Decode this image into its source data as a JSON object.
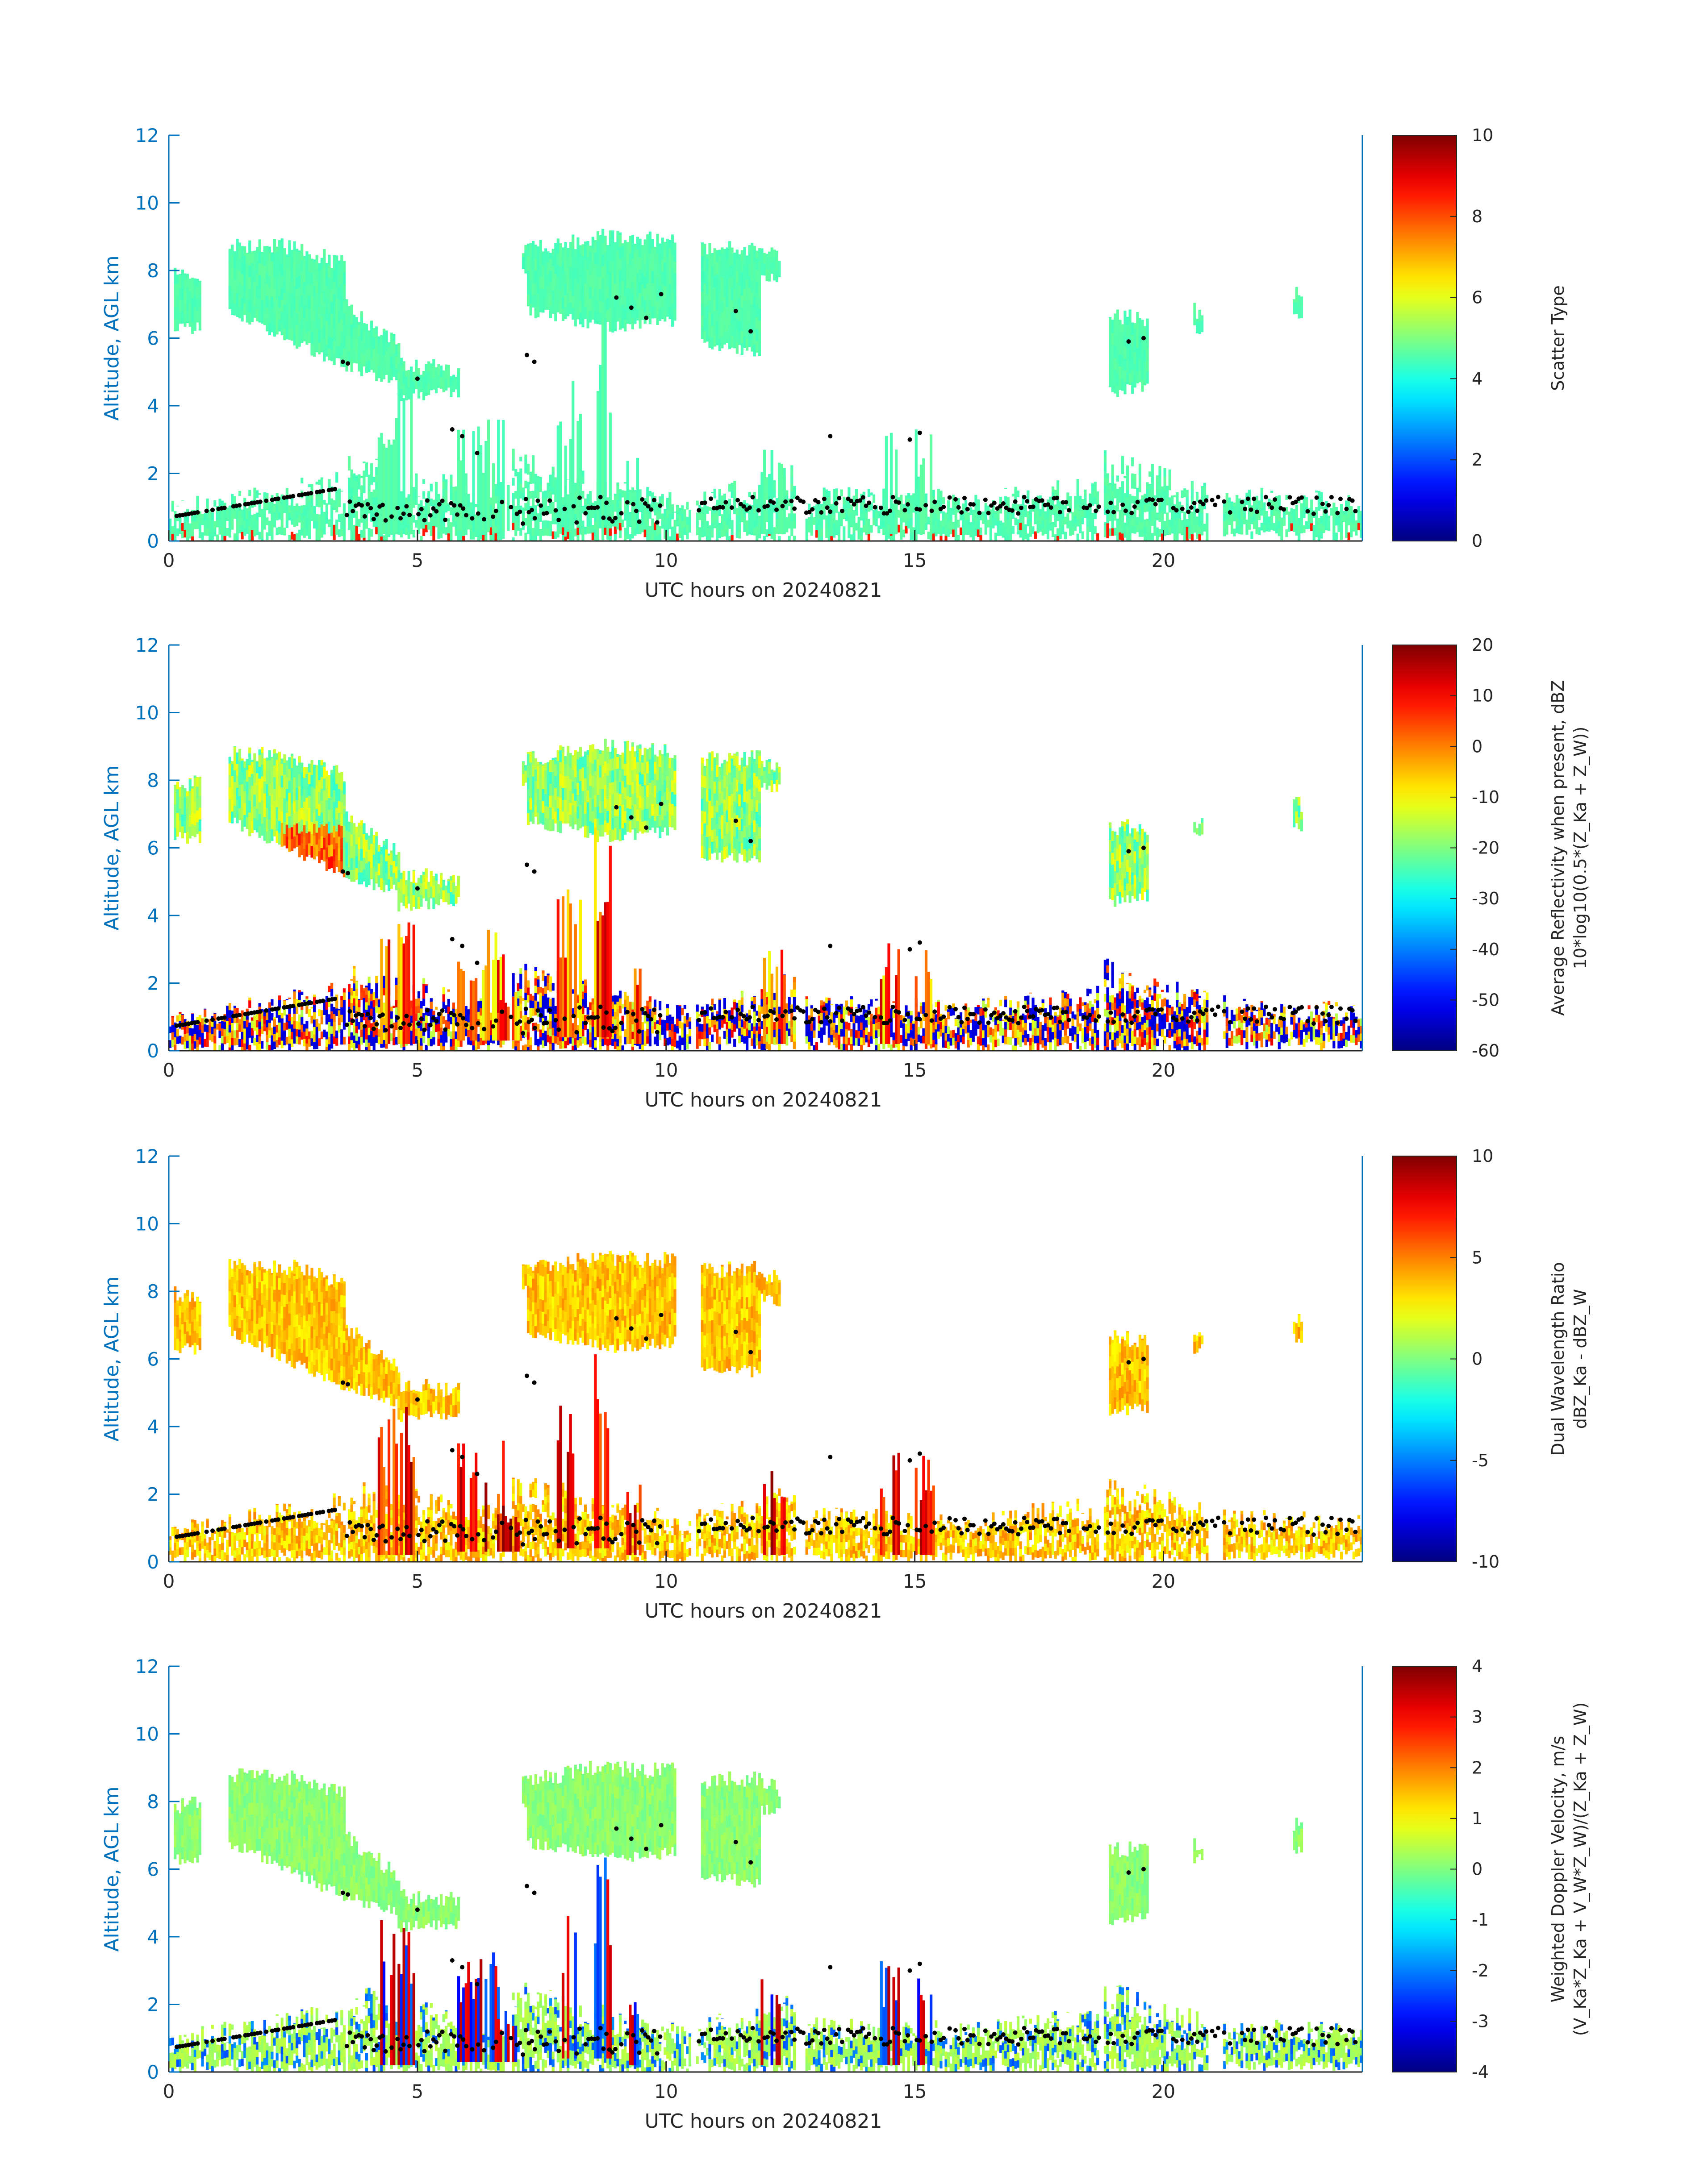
{
  "figure": {
    "background": "#ffffff",
    "axis_color": "#0072BD",
    "text_color": "#262626"
  },
  "chart_data": [
    {
      "type": "heatmap",
      "xlabel": "UTC hours on 20240821",
      "ylabel": "Altitude, AGL km",
      "xlim": [
        0,
        24
      ],
      "ylim": [
        0,
        12
      ],
      "xticks": [
        "0",
        "5",
        "10",
        "15",
        "20"
      ],
      "yticks": [
        "0",
        "2",
        "4",
        "6",
        "8",
        "10",
        "12"
      ],
      "colorbar": {
        "label": "Scatter Type",
        "label2": "",
        "clim": [
          0,
          10
        ],
        "ticks": [
          "0",
          "2",
          "4",
          "6",
          "8",
          "10"
        ],
        "colormap": "jet"
      },
      "scene": "scatter",
      "cloud_top_markers": "black dots"
    },
    {
      "type": "heatmap",
      "xlabel": "UTC hours on 20240821",
      "ylabel": "Altitude, AGL km",
      "xlim": [
        0,
        24
      ],
      "ylim": [
        0,
        12
      ],
      "xticks": [
        "0",
        "5",
        "10",
        "15",
        "20"
      ],
      "yticks": [
        "0",
        "2",
        "4",
        "6",
        "8",
        "10",
        "12"
      ],
      "colorbar": {
        "label": "Average Reflectivity when present, dBZ",
        "label2": "10*log10(0.5*(Z_Ka + Z_W))",
        "clim": [
          -60,
          20
        ],
        "ticks": [
          "-60",
          "-50",
          "-40",
          "-30",
          "-20",
          "-10",
          "0",
          "10",
          "20"
        ],
        "colormap": "jet"
      },
      "scene": "refl",
      "cloud_top_markers": "black dots"
    },
    {
      "type": "heatmap",
      "xlabel": "UTC hours on 20240821",
      "ylabel": "Altitude, AGL km",
      "xlim": [
        0,
        24
      ],
      "ylim": [
        0,
        12
      ],
      "xticks": [
        "0",
        "5",
        "10",
        "15",
        "20"
      ],
      "yticks": [
        "0",
        "2",
        "4",
        "6",
        "8",
        "10",
        "12"
      ],
      "colorbar": {
        "label": "Dual Wavelength Ratio",
        "label2": "dBZ_Ka - dBZ_W",
        "clim": [
          -10,
          10
        ],
        "ticks": [
          "-10",
          "-5",
          "0",
          "5",
          "10"
        ],
        "colormap": "jet"
      },
      "scene": "dwr",
      "cloud_top_markers": "black dots"
    },
    {
      "type": "heatmap",
      "xlabel": "UTC hours on 20240821",
      "ylabel": "Altitude, AGL km",
      "xlim": [
        0,
        24
      ],
      "ylim": [
        0,
        12
      ],
      "xticks": [
        "0",
        "5",
        "10",
        "15",
        "20"
      ],
      "yticks": [
        "0",
        "2",
        "4",
        "6",
        "8",
        "10",
        "12"
      ],
      "colorbar": {
        "label": "Weighted Doppler Velocity, m/s",
        "label2": "(V_Ka*Z_Ka + V_W*Z_W)/(Z_Ka + Z_W)",
        "clim": [
          -4,
          4
        ],
        "ticks": [
          "-4",
          "-3",
          "-2",
          "-1",
          "0",
          "1",
          "2",
          "3",
          "4"
        ],
        "colormap": "jet"
      },
      "scene": "vel",
      "cloud_top_markers": "black dots"
    }
  ]
}
